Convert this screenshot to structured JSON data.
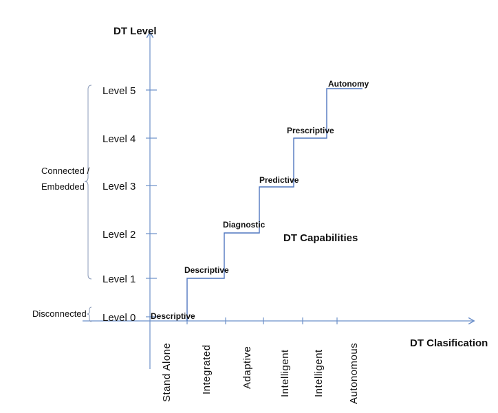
{
  "title_y": "DT Level",
  "title_x": "DT Clasification",
  "center_label": "DT Capabilities",
  "groups": {
    "connected_line1": "Connected /",
    "connected_line2": "Embedded",
    "disconnected": "Disconnected"
  },
  "levels": [
    "Level 0",
    "Level 1",
    "Level 2",
    "Level 3",
    "Level 4",
    "Level 5"
  ],
  "capabilities": [
    "Descriptive",
    "Descriptive",
    "Diagnostic",
    "Predictive",
    "Prescriptive",
    "Autonomy"
  ],
  "classifications": [
    "Stand Alone",
    "Integrated",
    "Adaptive",
    "Intelligent",
    "Intelligent",
    "Autonomous"
  ],
  "colors": {
    "axis": "#6b8fc9",
    "step": "#4f76bf",
    "text": "#111111"
  }
}
